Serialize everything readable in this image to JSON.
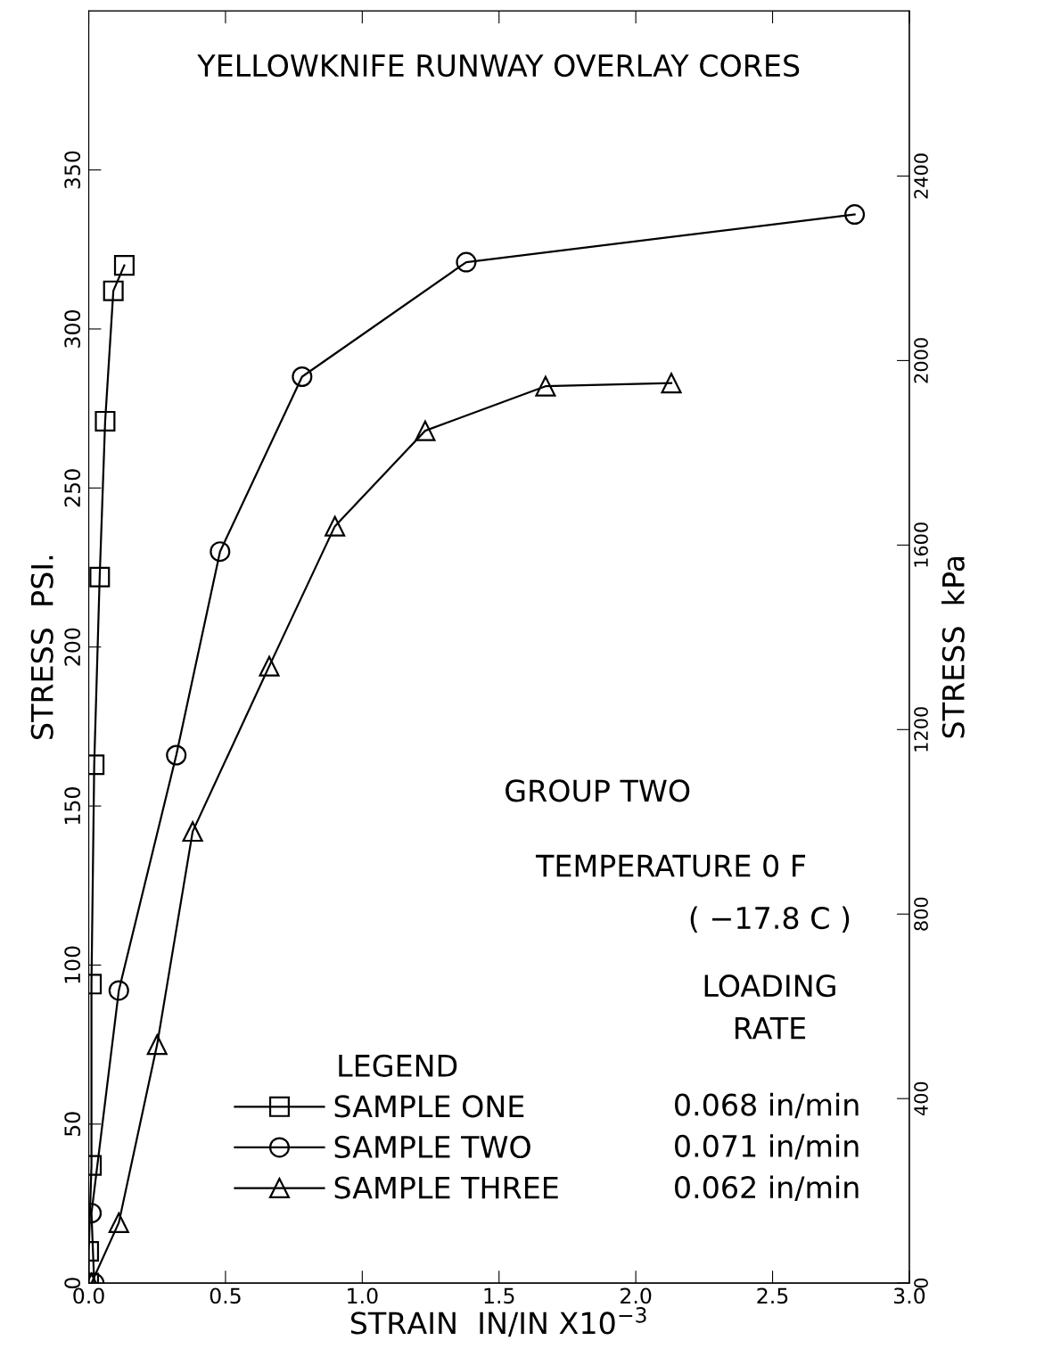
{
  "chart_data": {
    "type": "line",
    "title": "YELLOWKNIFE RUNWAY OVERLAY CORES",
    "xlabel": "STRAIN  IN/IN X10$^{−3}$",
    "ylabel": "STRESS  PSI.",
    "y2label": "STRESS  kPa",
    "legend_title": "LEGEND",
    "annotations": [
      "GROUP TWO",
      "TEMPERATURE 0 F",
      "( −17.8 C )",
      "LOADING\nRATE",
      "0.068 in/min",
      "0.071 in/min",
      "0.062 in/min"
    ],
    "series": [
      {
        "name": "SAMPLE ONE",
        "color": "#000000",
        "marker": "square",
        "x": [
          0,
          0.0,
          0.01,
          0.01,
          0.02,
          0.04,
          0.06,
          0.09,
          0.13
        ],
        "values": [
          0,
          10,
          37,
          94,
          163,
          222,
          271,
          312,
          320
        ]
      },
      {
        "name": "SAMPLE TWO",
        "color": "#000000",
        "marker": "circle",
        "x": [
          0.02,
          0.01,
          0.11,
          0.32,
          0.48,
          0.78,
          1.38,
          2.8
        ],
        "values": [
          0,
          22,
          92,
          166,
          230,
          285,
          321,
          336
        ]
      },
      {
        "name": "SAMPLE THREE",
        "color": "#000000",
        "marker": "triangle",
        "x": [
          0.01,
          0.11,
          0.25,
          0.38,
          0.66,
          0.9,
          1.23,
          1.67,
          2.13
        ],
        "values": [
          0,
          19,
          75,
          142,
          194,
          238,
          268,
          282,
          283
        ]
      }
    ],
    "xlim": [
      0,
      3.0
    ],
    "ylim": [
      0,
      400
    ],
    "y2lim": [
      0,
      2758
    ],
    "xticks": [
      {
        "value": 0,
        "label": "0.0"
      },
      0.5,
      {
        "value": 1,
        "label": "1.0"
      },
      1.5,
      {
        "value": 2,
        "label": "2.0"
      },
      2.5,
      {
        "value": 3,
        "label": "3.0"
      }
    ],
    "yticks": [
      0,
      50,
      100,
      150,
      200,
      250,
      300,
      350
    ],
    "y2ticks": [
      0,
      400,
      800,
      1200,
      1600,
      2000,
      2400
    ],
    "grid": false,
    "legend": "bottom",
    "line_style": "solid"
  }
}
